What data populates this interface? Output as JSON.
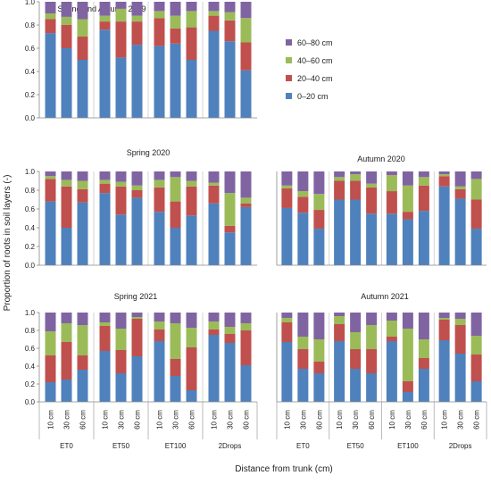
{
  "figure": {
    "ylabel": "Proportion of roots in soil layers (-)",
    "xlabel": "Distance from trunk (cm)",
    "distances": [
      "10 cm",
      "30 cm",
      "60 cm"
    ],
    "treatments": [
      "ET0",
      "ET50",
      "ET100",
      "2Drops"
    ],
    "legend": {
      "placement": "top-right",
      "entries": [
        {
          "label": "60–80 cm",
          "color": "#8064A2"
        },
        {
          "label": "40–60 cm",
          "color": "#9BBB59"
        },
        {
          "label": "20–40 cm",
          "color": "#C0504D"
        },
        {
          "label": "0–20 cm",
          "color": "#4F81BD"
        }
      ]
    },
    "layer_colors": [
      "#4F81BD",
      "#C0504D",
      "#9BBB59",
      "#8064A2"
    ],
    "yticks": [
      "0.0",
      "0.2",
      "0.4",
      "0.6",
      "0.8",
      "1.0"
    ]
  },
  "chart_data": [
    {
      "type": "bar",
      "title": "Spring and Autumn 2019",
      "ylim": [
        0,
        1
      ],
      "stacked": true,
      "series_order": [
        "0–20 cm",
        "20–40 cm",
        "40–60 cm",
        "60–80 cm"
      ],
      "categories": [
        "ET0 10 cm",
        "ET0 30 cm",
        "ET0 60 cm",
        "ET50 10 cm",
        "ET50 30 cm",
        "ET50 60 cm",
        "ET100 10 cm",
        "ET100 30 cm",
        "ET100 60 cm",
        "2Drops 10 cm",
        "2Drops 30 cm",
        "2Drops 60 cm"
      ],
      "stacks": [
        [
          0.73,
          0.12,
          0.05,
          0.1
        ],
        [
          0.6,
          0.2,
          0.07,
          0.13
        ],
        [
          0.5,
          0.2,
          0.15,
          0.15
        ],
        [
          0.76,
          0.07,
          0.05,
          0.12
        ],
        [
          0.52,
          0.31,
          0.11,
          0.06
        ],
        [
          0.63,
          0.2,
          0.05,
          0.12
        ],
        [
          0.62,
          0.24,
          0.06,
          0.08
        ],
        [
          0.64,
          0.13,
          0.11,
          0.12
        ],
        [
          0.5,
          0.28,
          0.14,
          0.08
        ],
        [
          0.75,
          0.13,
          0.04,
          0.08
        ],
        [
          0.66,
          0.18,
          0.07,
          0.09
        ],
        [
          0.41,
          0.24,
          0.21,
          0.14
        ]
      ]
    },
    {
      "type": "bar",
      "title": "Spring 2020",
      "ylim": [
        0,
        1
      ],
      "stacked": true,
      "series_order": [
        "0–20 cm",
        "20–40 cm",
        "40–60 cm",
        "60–80 cm"
      ],
      "categories": [
        "ET0 10 cm",
        "ET0 30 cm",
        "ET0 60 cm",
        "ET50 10 cm",
        "ET50 30 cm",
        "ET50 60 cm",
        "ET100 10 cm",
        "ET100 30 cm",
        "ET100 60 cm",
        "2Drops 10 cm",
        "2Drops 30 cm",
        "2Drops 60 cm"
      ],
      "stacks": [
        [
          0.68,
          0.24,
          0.03,
          0.05
        ],
        [
          0.4,
          0.44,
          0.07,
          0.09
        ],
        [
          0.67,
          0.14,
          0.09,
          0.1
        ],
        [
          0.77,
          0.1,
          0.04,
          0.09
        ],
        [
          0.54,
          0.3,
          0.05,
          0.11
        ],
        [
          0.72,
          0.08,
          0.05,
          0.15
        ],
        [
          0.57,
          0.26,
          0.08,
          0.09
        ],
        [
          0.4,
          0.28,
          0.26,
          0.06
        ],
        [
          0.53,
          0.31,
          0.06,
          0.1
        ],
        [
          0.66,
          0.19,
          0.03,
          0.12
        ],
        [
          0.35,
          0.07,
          0.35,
          0.23
        ],
        [
          0.62,
          0.04,
          0.06,
          0.28
        ]
      ]
    },
    {
      "type": "bar",
      "title": "Autumn 2020",
      "ylim": [
        0,
        1
      ],
      "stacked": true,
      "series_order": [
        "0–20 cm",
        "20–40 cm",
        "40–60 cm",
        "60–80 cm"
      ],
      "categories": [
        "ET0 10 cm",
        "ET0 30 cm",
        "ET0 60 cm",
        "ET50 10 cm",
        "ET50 30 cm",
        "ET50 60 cm",
        "ET100 10 cm",
        "ET100 30 cm",
        "ET100 60 cm",
        "2Drops 10 cm",
        "2Drops 30 cm",
        "2Drops 60 cm"
      ],
      "stacks": [
        [
          0.61,
          0.21,
          0.03,
          0.15
        ],
        [
          0.56,
          0.17,
          0.06,
          0.21
        ],
        [
          0.39,
          0.2,
          0.17,
          0.24
        ],
        [
          0.7,
          0.2,
          0.04,
          0.06
        ],
        [
          0.7,
          0.2,
          0.07,
          0.03
        ],
        [
          0.55,
          0.28,
          0.04,
          0.13
        ],
        [
          0.55,
          0.24,
          0.17,
          0.04
        ],
        [
          0.49,
          0.08,
          0.28,
          0.15
        ],
        [
          0.58,
          0.27,
          0.09,
          0.06
        ],
        [
          0.84,
          0.11,
          0.02,
          0.03
        ],
        [
          0.71,
          0.1,
          0.03,
          0.16
        ],
        [
          0.39,
          0.31,
          0.22,
          0.08
        ]
      ]
    },
    {
      "type": "bar",
      "title": "Spring 2021",
      "ylim": [
        0,
        1
      ],
      "stacked": true,
      "series_order": [
        "0–20 cm",
        "20–40 cm",
        "40–60 cm",
        "60–80 cm"
      ],
      "categories": [
        "ET0 10 cm",
        "ET0 30 cm",
        "ET0 60 cm",
        "ET50 10 cm",
        "ET50 30 cm",
        "ET50 60 cm",
        "ET100 10 cm",
        "ET100 30 cm",
        "ET100 60 cm",
        "2Drops 10 cm",
        "2Drops 30 cm",
        "2Drops 60 cm"
      ],
      "stacks": [
        [
          0.22,
          0.3,
          0.27,
          0.21
        ],
        [
          0.25,
          0.42,
          0.21,
          0.12
        ],
        [
          0.36,
          0.16,
          0.34,
          0.14
        ],
        [
          0.57,
          0.28,
          0.04,
          0.11
        ],
        [
          0.32,
          0.26,
          0.24,
          0.18
        ],
        [
          0.51,
          0.42,
          0.02,
          0.05
        ],
        [
          0.68,
          0.13,
          0.09,
          0.1
        ],
        [
          0.29,
          0.19,
          0.4,
          0.12
        ],
        [
          0.13,
          0.48,
          0.22,
          0.17
        ],
        [
          0.75,
          0.06,
          0.09,
          0.1
        ],
        [
          0.66,
          0.1,
          0.08,
          0.16
        ],
        [
          0.41,
          0.39,
          0.08,
          0.12
        ]
      ]
    },
    {
      "type": "bar",
      "title": "Autumn 2021",
      "ylim": [
        0,
        1
      ],
      "stacked": true,
      "series_order": [
        "0–20 cm",
        "20–40 cm",
        "40–60 cm",
        "60–80 cm"
      ],
      "categories": [
        "ET0 10 cm",
        "ET0 30 cm",
        "ET0 60 cm",
        "ET50 10 cm",
        "ET50 30 cm",
        "ET50 60 cm",
        "ET100 10 cm",
        "ET100 30 cm",
        "ET100 60 cm",
        "2Drops 10 cm",
        "2Drops 30 cm",
        "2Drops 60 cm"
      ],
      "stacks": [
        [
          0.67,
          0.22,
          0.05,
          0.06
        ],
        [
          0.37,
          0.22,
          0.14,
          0.27
        ],
        [
          0.32,
          0.13,
          0.25,
          0.3
        ],
        [
          0.68,
          0.19,
          0.09,
          0.04
        ],
        [
          0.37,
          0.22,
          0.19,
          0.22
        ],
        [
          0.32,
          0.27,
          0.27,
          0.14
        ],
        [
          0.68,
          0.05,
          0.18,
          0.09
        ],
        [
          0.11,
          0.12,
          0.59,
          0.18
        ],
        [
          0.37,
          0.12,
          0.21,
          0.3
        ],
        [
          0.69,
          0.23,
          0.02,
          0.06
        ],
        [
          0.54,
          0.32,
          0.07,
          0.07
        ],
        [
          0.23,
          0.3,
          0.21,
          0.26
        ]
      ]
    }
  ]
}
